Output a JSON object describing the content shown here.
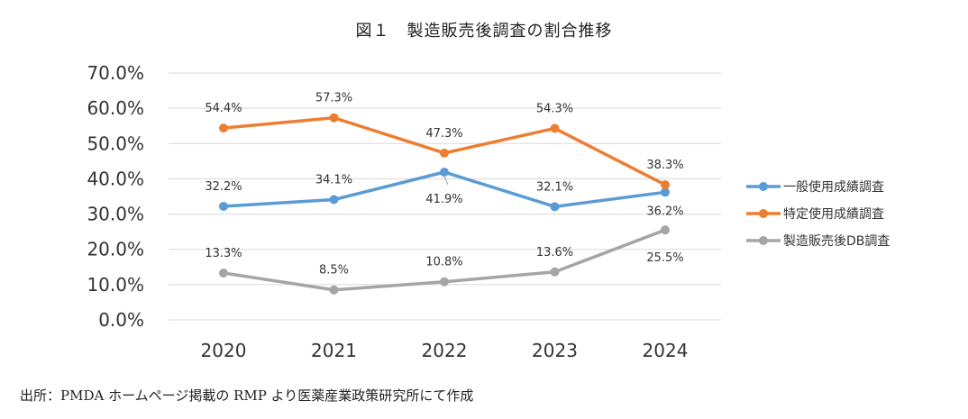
{
  "chart_data": {
    "type": "line",
    "title": "図１　製造販売後調査の割合推移",
    "categories": [
      "2020",
      "2021",
      "2022",
      "2023",
      "2024"
    ],
    "ylim": [
      0,
      70
    ],
    "yticks": [
      "0.0%",
      "10.0%",
      "20.0%",
      "30.0%",
      "40.0%",
      "50.0%",
      "60.0%",
      "70.0%"
    ],
    "grid": true,
    "legend_position": "right",
    "series": [
      {
        "name": "一般使用成績調査",
        "color": "#5b9bd5",
        "values": [
          32.2,
          34.1,
          41.9,
          32.1,
          36.2
        ],
        "labels": [
          "32.2%",
          "34.1%",
          "41.9%",
          "32.1%",
          "36.2%"
        ]
      },
      {
        "name": "特定使用成績調査",
        "color": "#ed7d31",
        "values": [
          54.4,
          57.3,
          47.3,
          54.3,
          38.3
        ],
        "labels": [
          "54.4%",
          "57.3%",
          "47.3%",
          "54.3%",
          "38.3%"
        ]
      },
      {
        "name": "製造販売後DB調査",
        "color": "#a5a5a5",
        "values": [
          13.3,
          8.5,
          10.8,
          13.6,
          25.5
        ],
        "labels": [
          "13.3%",
          "8.5%",
          "10.8%",
          "13.6%",
          "25.5%"
        ]
      }
    ]
  },
  "source": "出所：PMDA ホームページ掲載の RMP より医薬産業政策研究所にて作成"
}
